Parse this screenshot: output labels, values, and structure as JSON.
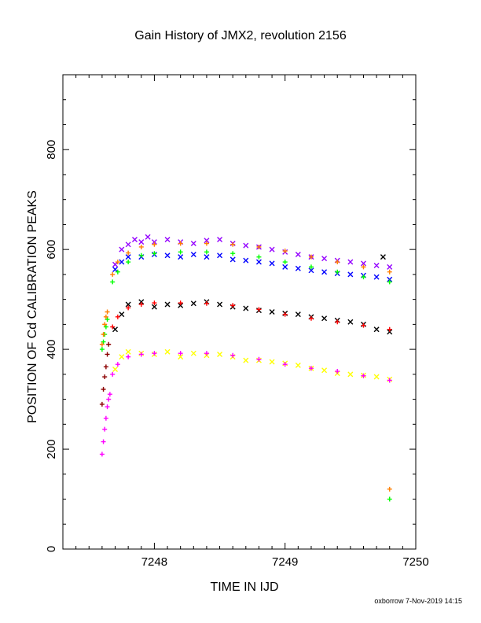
{
  "footer": "oxborrow  7-Nov-2019 14:15",
  "chart_data": {
    "type": "scatter",
    "title": "Gain History of JMX2, revolution 2156",
    "xlabel": "TIME IN IJD",
    "ylabel": "POSITION OF Cd CALIBRATION PEAKS",
    "xlim": [
      7247.3,
      7250.0
    ],
    "ylim": [
      0,
      950
    ],
    "xticks": [
      7248,
      7249,
      7250
    ],
    "yticks": [
      0,
      200,
      400,
      600,
      800
    ],
    "grid": false,
    "legend": "none",
    "raw_series": [
      {
        "color": "#9400ff",
        "marker": "x",
        "points": [
          [
            7247.7,
            570
          ],
          [
            7247.75,
            600
          ],
          [
            7247.8,
            610
          ],
          [
            7247.85,
            620
          ],
          [
            7247.9,
            615
          ],
          [
            7247.95,
            625
          ],
          [
            7248.0,
            615
          ],
          [
            7248.1,
            620
          ],
          [
            7248.2,
            615
          ],
          [
            7248.3,
            612
          ],
          [
            7248.4,
            618
          ],
          [
            7248.5,
            620
          ],
          [
            7248.6,
            612
          ],
          [
            7248.7,
            608
          ],
          [
            7248.8,
            605
          ],
          [
            7248.9,
            600
          ],
          [
            7249.0,
            595
          ],
          [
            7249.1,
            590
          ],
          [
            7249.2,
            585
          ],
          [
            7249.3,
            582
          ],
          [
            7249.4,
            578
          ],
          [
            7249.5,
            575
          ],
          [
            7249.6,
            572
          ],
          [
            7249.7,
            568
          ],
          [
            7249.8,
            565
          ]
        ]
      },
      {
        "color": "#0000ff",
        "marker": "x",
        "points": [
          [
            7247.7,
            560
          ],
          [
            7247.75,
            575
          ],
          [
            7247.8,
            585
          ],
          [
            7247.9,
            585
          ],
          [
            7248.0,
            590
          ],
          [
            7248.1,
            588
          ],
          [
            7248.2,
            585
          ],
          [
            7248.3,
            590
          ],
          [
            7248.4,
            585
          ],
          [
            7248.5,
            588
          ],
          [
            7248.6,
            580
          ],
          [
            7248.7,
            578
          ],
          [
            7248.8,
            575
          ],
          [
            7248.9,
            572
          ],
          [
            7249.0,
            565
          ],
          [
            7249.1,
            562
          ],
          [
            7249.2,
            558
          ],
          [
            7249.3,
            555
          ],
          [
            7249.4,
            552
          ],
          [
            7249.5,
            550
          ],
          [
            7249.6,
            548
          ],
          [
            7249.7,
            545
          ],
          [
            7249.8,
            540
          ]
        ]
      },
      {
        "color": "#000000",
        "marker": "x",
        "points": [
          [
            7247.7,
            440
          ],
          [
            7247.75,
            470
          ],
          [
            7247.8,
            490
          ],
          [
            7247.9,
            495
          ],
          [
            7248.0,
            485
          ],
          [
            7248.1,
            490
          ],
          [
            7248.2,
            488
          ],
          [
            7248.3,
            492
          ],
          [
            7248.4,
            495
          ],
          [
            7248.5,
            490
          ],
          [
            7248.6,
            485
          ],
          [
            7248.7,
            482
          ],
          [
            7248.8,
            478
          ],
          [
            7248.9,
            475
          ],
          [
            7249.0,
            472
          ],
          [
            7249.1,
            470
          ],
          [
            7249.2,
            465
          ],
          [
            7249.3,
            462
          ],
          [
            7249.4,
            458
          ],
          [
            7249.5,
            455
          ],
          [
            7249.6,
            450
          ],
          [
            7249.7,
            440
          ],
          [
            7249.8,
            435
          ]
        ]
      },
      {
        "color": "#ffff00",
        "marker": "x",
        "points": [
          [
            7247.7,
            360
          ],
          [
            7247.75,
            385
          ],
          [
            7247.8,
            395
          ],
          [
            7247.9,
            392
          ],
          [
            7248.0,
            390
          ],
          [
            7248.1,
            395
          ],
          [
            7248.2,
            385
          ],
          [
            7248.3,
            392
          ],
          [
            7248.4,
            388
          ],
          [
            7248.5,
            390
          ],
          [
            7248.6,
            385
          ],
          [
            7248.7,
            378
          ],
          [
            7248.8,
            378
          ],
          [
            7248.9,
            375
          ],
          [
            7249.0,
            372
          ],
          [
            7249.1,
            368
          ],
          [
            7249.2,
            362
          ],
          [
            7249.3,
            358
          ],
          [
            7249.4,
            352
          ],
          [
            7249.5,
            350
          ],
          [
            7249.6,
            348
          ],
          [
            7249.7,
            345
          ],
          [
            7249.8,
            340
          ]
        ]
      }
    ],
    "fit_series": [
      {
        "color": "#ff7f00",
        "marker": "+",
        "points": [
          [
            7247.68,
            550
          ],
          [
            7247.72,
            575
          ],
          [
            7247.8,
            593
          ],
          [
            7247.9,
            605
          ],
          [
            7248.0,
            610
          ],
          [
            7248.2,
            612
          ],
          [
            7248.4,
            612
          ],
          [
            7248.6,
            610
          ],
          [
            7248.8,
            605
          ],
          [
            7249.0,
            597
          ],
          [
            7249.2,
            585
          ],
          [
            7249.4,
            575
          ],
          [
            7249.6,
            565
          ],
          [
            7249.8,
            555
          ]
        ]
      },
      {
        "color": "#00ff00",
        "marker": "+",
        "points": [
          [
            7247.68,
            535
          ],
          [
            7247.72,
            555
          ],
          [
            7247.8,
            575
          ],
          [
            7247.9,
            588
          ],
          [
            7248.0,
            592
          ],
          [
            7248.2,
            595
          ],
          [
            7248.4,
            595
          ],
          [
            7248.6,
            592
          ],
          [
            7248.8,
            585
          ],
          [
            7249.0,
            575
          ],
          [
            7249.2,
            565
          ],
          [
            7249.4,
            555
          ],
          [
            7249.6,
            545
          ],
          [
            7249.8,
            535
          ]
        ]
      },
      {
        "color": "#ff0000",
        "marker": "+",
        "points": [
          [
            7247.68,
            445
          ],
          [
            7247.72,
            465
          ],
          [
            7247.8,
            483
          ],
          [
            7247.9,
            490
          ],
          [
            7248.0,
            493
          ],
          [
            7248.2,
            493
          ],
          [
            7248.4,
            492
          ],
          [
            7248.6,
            488
          ],
          [
            7248.8,
            480
          ],
          [
            7249.0,
            470
          ],
          [
            7249.2,
            462
          ],
          [
            7249.4,
            455
          ],
          [
            7249.6,
            448
          ],
          [
            7249.8,
            440
          ]
        ]
      },
      {
        "color": "#ff00ff",
        "marker": "+",
        "points": [
          [
            7247.68,
            350
          ],
          [
            7247.72,
            370
          ],
          [
            7247.8,
            385
          ],
          [
            7247.9,
            390
          ],
          [
            7248.0,
            392
          ],
          [
            7248.2,
            392
          ],
          [
            7248.4,
            392
          ],
          [
            7248.6,
            388
          ],
          [
            7248.8,
            380
          ],
          [
            7249.0,
            370
          ],
          [
            7249.2,
            362
          ],
          [
            7249.4,
            356
          ],
          [
            7249.6,
            347
          ],
          [
            7249.8,
            338
          ]
        ]
      }
    ],
    "early_series": [
      {
        "color": "#ff00ff",
        "marker": "+",
        "points": [
          [
            7247.6,
            190
          ],
          [
            7247.61,
            215
          ],
          [
            7247.62,
            240
          ],
          [
            7247.63,
            262
          ],
          [
            7247.64,
            285
          ],
          [
            7247.65,
            300
          ],
          [
            7247.66,
            310
          ]
        ]
      },
      {
        "color": "#8b0000",
        "marker": "+",
        "points": [
          [
            7247.6,
            290
          ],
          [
            7247.61,
            320
          ],
          [
            7247.62,
            345
          ],
          [
            7247.63,
            365
          ],
          [
            7247.64,
            390
          ],
          [
            7247.65,
            410
          ]
        ]
      },
      {
        "color": "#00ff00",
        "marker": "+",
        "points": [
          [
            7247.6,
            400
          ],
          [
            7247.61,
            415
          ],
          [
            7247.62,
            430
          ],
          [
            7247.63,
            445
          ],
          [
            7247.64,
            460
          ]
        ]
      },
      {
        "color": "#ff7f00",
        "marker": "+",
        "points": [
          [
            7247.6,
            410
          ],
          [
            7247.61,
            430
          ],
          [
            7247.62,
            450
          ],
          [
            7247.63,
            465
          ],
          [
            7247.64,
            475
          ]
        ]
      }
    ],
    "outliers": [
      {
        "color": "#ff7f00",
        "marker": "+",
        "points": [
          [
            7249.8,
            120
          ]
        ]
      },
      {
        "color": "#00ff00",
        "marker": "+",
        "points": [
          [
            7249.8,
            100
          ]
        ]
      },
      {
        "color": "#000000",
        "marker": "x",
        "points": [
          [
            7249.75,
            585
          ]
        ]
      }
    ]
  }
}
